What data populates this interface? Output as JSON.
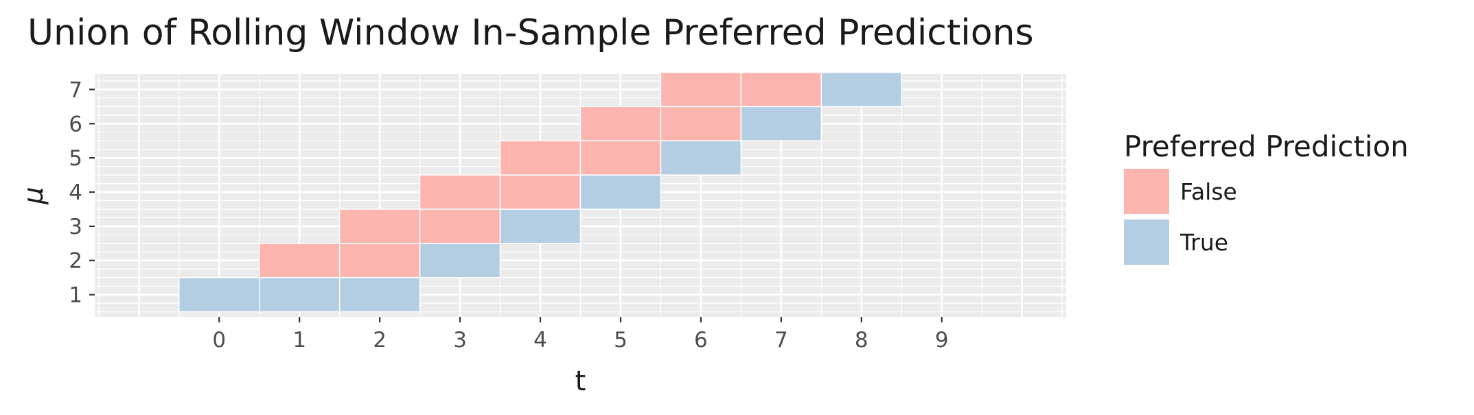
{
  "title": "Union of Rolling Window In-Sample Preferred Predictions",
  "chart_data": {
    "type": "heatmap",
    "title": "Union of Rolling Window In-Sample Preferred Predictions",
    "xlabel": "t",
    "ylabel": "μ",
    "x_ticks": [
      0,
      1,
      2,
      3,
      4,
      5,
      6,
      7,
      8,
      9
    ],
    "y_ticks": [
      1,
      2,
      3,
      4,
      5,
      6,
      7
    ],
    "xlim": [
      -1.55,
      10.55
    ],
    "ylim": [
      0.35,
      7.45
    ],
    "grid": true,
    "legend": {
      "title": "Preferred Prediction",
      "position": "right",
      "entries": [
        {
          "label": "False",
          "color": "#fbb4ae"
        },
        {
          "label": "True",
          "color": "#b3cde3"
        }
      ]
    },
    "cells": [
      {
        "t": 0,
        "mu": 1,
        "preferred": "True"
      },
      {
        "t": 1,
        "mu": 1,
        "preferred": "True"
      },
      {
        "t": 1,
        "mu": 2,
        "preferred": "False"
      },
      {
        "t": 2,
        "mu": 1,
        "preferred": "True"
      },
      {
        "t": 2,
        "mu": 2,
        "preferred": "False"
      },
      {
        "t": 2,
        "mu": 3,
        "preferred": "False"
      },
      {
        "t": 3,
        "mu": 2,
        "preferred": "True"
      },
      {
        "t": 3,
        "mu": 3,
        "preferred": "False"
      },
      {
        "t": 3,
        "mu": 4,
        "preferred": "False"
      },
      {
        "t": 4,
        "mu": 3,
        "preferred": "True"
      },
      {
        "t": 4,
        "mu": 4,
        "preferred": "False"
      },
      {
        "t": 4,
        "mu": 5,
        "preferred": "False"
      },
      {
        "t": 5,
        "mu": 4,
        "preferred": "True"
      },
      {
        "t": 5,
        "mu": 5,
        "preferred": "False"
      },
      {
        "t": 5,
        "mu": 6,
        "preferred": "False"
      },
      {
        "t": 6,
        "mu": 5,
        "preferred": "True"
      },
      {
        "t": 6,
        "mu": 6,
        "preferred": "False"
      },
      {
        "t": 6,
        "mu": 7,
        "preferred": "False"
      },
      {
        "t": 7,
        "mu": 6,
        "preferred": "True"
      },
      {
        "t": 7,
        "mu": 7,
        "preferred": "False"
      },
      {
        "t": 8,
        "mu": 7,
        "preferred": "True"
      }
    ]
  },
  "colors": {
    "panel_background": "#ebebeb",
    "grid_line": "#ffffff",
    "false_fill": "#fbb4ae",
    "true_fill": "#b3cde3",
    "tick_text": "#4d4d4d",
    "tick_mark": "#333333"
  }
}
